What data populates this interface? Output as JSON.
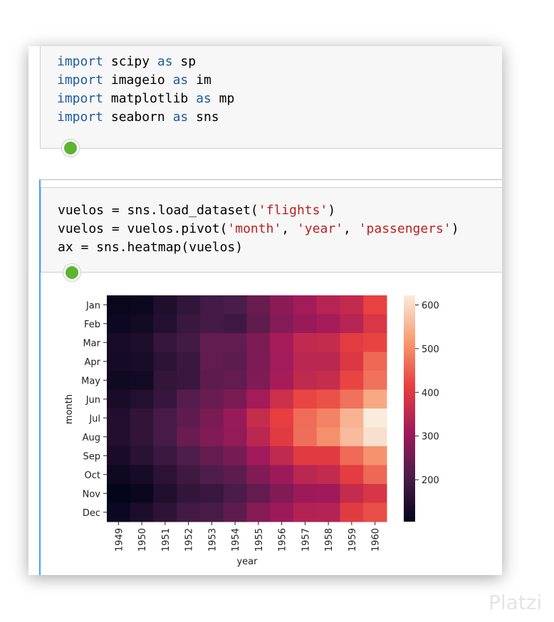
{
  "cells": [
    {
      "lines": [
        [
          {
            "text": "import",
            "kind": "keyword"
          },
          {
            "text": " scipy ",
            "kind": "plain"
          },
          {
            "text": "as",
            "kind": "keyword"
          },
          {
            "text": " sp",
            "kind": "plain"
          }
        ],
        [
          {
            "text": "import",
            "kind": "keyword"
          },
          {
            "text": " imageio ",
            "kind": "plain"
          },
          {
            "text": "as",
            "kind": "keyword"
          },
          {
            "text": " im",
            "kind": "plain"
          }
        ],
        [
          {
            "text": "import",
            "kind": "keyword"
          },
          {
            "text": " matplotlib ",
            "kind": "plain"
          },
          {
            "text": "as",
            "kind": "keyword"
          },
          {
            "text": " mp",
            "kind": "plain"
          }
        ],
        [
          {
            "text": "import",
            "kind": "keyword"
          },
          {
            "text": " seaborn ",
            "kind": "plain"
          },
          {
            "text": "as",
            "kind": "keyword"
          },
          {
            "text": " sns",
            "kind": "plain"
          }
        ]
      ]
    },
    {
      "lines": [
        [
          {
            "text": "vuelos = sns.load_dataset(",
            "kind": "plain"
          },
          {
            "text": "'flights'",
            "kind": "string"
          },
          {
            "text": ")",
            "kind": "plain"
          }
        ],
        [
          {
            "text": "vuelos = vuelos.pivot(",
            "kind": "plain"
          },
          {
            "text": "'month'",
            "kind": "string"
          },
          {
            "text": ", ",
            "kind": "plain"
          },
          {
            "text": "'year'",
            "kind": "string"
          },
          {
            "text": ", ",
            "kind": "plain"
          },
          {
            "text": "'passengers'",
            "kind": "string"
          },
          {
            "text": ")",
            "kind": "plain"
          }
        ],
        [
          {
            "text": "ax = sns.heatmap(vuelos)",
            "kind": "plain"
          }
        ]
      ]
    }
  ],
  "chart_data": {
    "type": "heatmap",
    "xlabel": "year",
    "ylabel": "month",
    "x": [
      "1949",
      "1950",
      "1951",
      "1952",
      "1953",
      "1954",
      "1955",
      "1956",
      "1957",
      "1958",
      "1959",
      "1960"
    ],
    "categories": [
      "Jan",
      "Feb",
      "Mar",
      "Apr",
      "May",
      "Jun",
      "Jul",
      "Aug",
      "Sep",
      "Oct",
      "Nov",
      "Dec"
    ],
    "values": [
      [
        112,
        115,
        145,
        171,
        196,
        204,
        242,
        284,
        315,
        340,
        360,
        417
      ],
      [
        118,
        126,
        150,
        180,
        196,
        188,
        233,
        277,
        301,
        318,
        342,
        391
      ],
      [
        132,
        141,
        178,
        193,
        236,
        235,
        267,
        317,
        356,
        362,
        406,
        419
      ],
      [
        129,
        135,
        163,
        181,
        235,
        227,
        269,
        313,
        348,
        348,
        396,
        461
      ],
      [
        121,
        125,
        172,
        183,
        229,
        234,
        270,
        318,
        355,
        363,
        420,
        472
      ],
      [
        135,
        149,
        178,
        218,
        243,
        264,
        315,
        374,
        422,
        435,
        472,
        535
      ],
      [
        148,
        170,
        199,
        230,
        264,
        302,
        364,
        413,
        465,
        491,
        548,
        622
      ],
      [
        148,
        170,
        199,
        242,
        272,
        293,
        347,
        405,
        467,
        505,
        559,
        606
      ],
      [
        136,
        158,
        184,
        209,
        237,
        259,
        312,
        355,
        404,
        404,
        463,
        508
      ],
      [
        119,
        133,
        162,
        191,
        211,
        229,
        274,
        306,
        347,
        359,
        407,
        461
      ],
      [
        104,
        114,
        146,
        172,
        180,
        203,
        237,
        271,
        305,
        310,
        362,
        390
      ],
      [
        118,
        140,
        166,
        194,
        201,
        229,
        278,
        306,
        336,
        337,
        405,
        432
      ]
    ],
    "clim": [
      104,
      622
    ],
    "cticks": [
      200,
      300,
      400,
      500,
      600
    ],
    "colorscale": [
      "#03051a",
      "#4c1d4b",
      "#a11a5b",
      "#e83f3f",
      "#f69c73",
      "#faebdd"
    ]
  },
  "watermark": "Platzi"
}
